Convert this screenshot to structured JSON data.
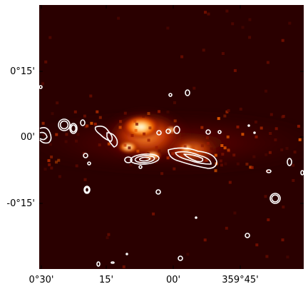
{
  "figure": {
    "colormap": "gist_heat",
    "background_color": "#2a0000",
    "contour_color": "#ffffff",
    "grid": false
  },
  "axes": {
    "y_ticks": [
      "0°15'",
      "00'",
      "-0°15'"
    ],
    "x_ticks": [
      "0°30'",
      "15'",
      "00'",
      "359°45'"
    ]
  }
}
